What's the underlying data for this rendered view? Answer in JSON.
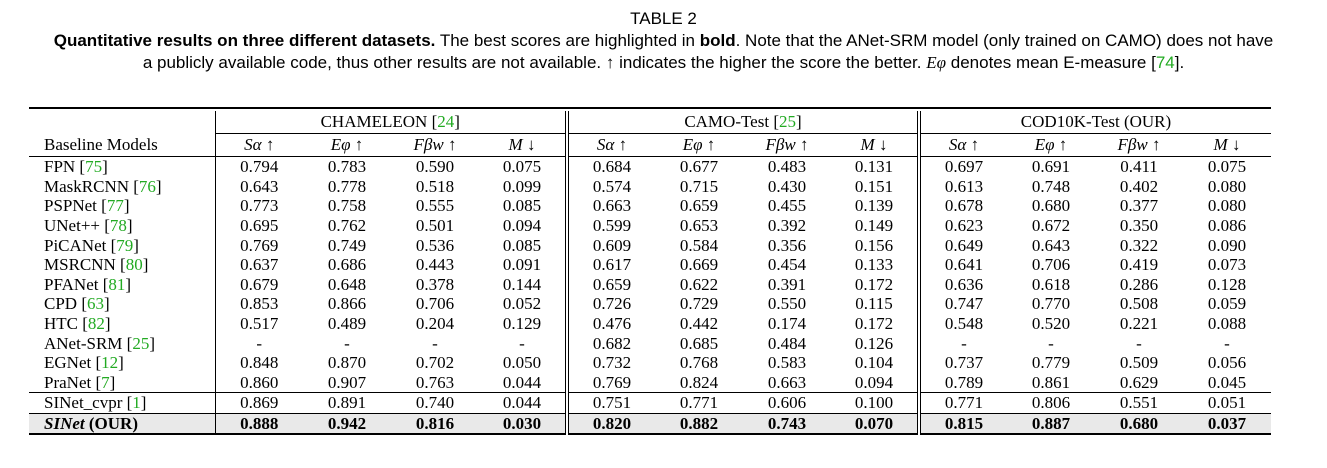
{
  "caption": {
    "table_label": "TABLE 2",
    "bold_lead": "Quantitative results on three different datasets.",
    "text_1": " The best scores are highlighted in ",
    "bold_word": "bold",
    "text_2": ". Note that the ANet-SRM model (only trained on CAMO) does not have a publicly available code, thus other results are not available. ↑ indicates the higher the score the better. ",
    "e_symbol": "Eφ",
    "text_3": " denotes mean E-measure [",
    "ref": "74",
    "text_4": "]."
  },
  "table": {
    "row_header": "Baseline Models",
    "datasets": [
      {
        "name": "CHAMELEON",
        "ref": "24"
      },
      {
        "name": "CAMO-Test",
        "ref": "25"
      },
      {
        "name": "COD10K-Test (OUR)",
        "ref": ""
      }
    ],
    "metrics": [
      "Sα ↑",
      "Eφ ↑",
      "Fβw ↑",
      "M ↓"
    ],
    "rows": [
      {
        "model": "FPN",
        "ref": "75",
        "values": [
          "0.794",
          "0.783",
          "0.590",
          "0.075",
          "0.684",
          "0.677",
          "0.483",
          "0.131",
          "0.697",
          "0.691",
          "0.411",
          "0.075"
        ]
      },
      {
        "model": "MaskRCNN",
        "ref": "76",
        "values": [
          "0.643",
          "0.778",
          "0.518",
          "0.099",
          "0.574",
          "0.715",
          "0.430",
          "0.151",
          "0.613",
          "0.748",
          "0.402",
          "0.080"
        ]
      },
      {
        "model": "PSPNet",
        "ref": "77",
        "values": [
          "0.773",
          "0.758",
          "0.555",
          "0.085",
          "0.663",
          "0.659",
          "0.455",
          "0.139",
          "0.678",
          "0.680",
          "0.377",
          "0.080"
        ]
      },
      {
        "model": "UNet++",
        "ref": "78",
        "values": [
          "0.695",
          "0.762",
          "0.501",
          "0.094",
          "0.599",
          "0.653",
          "0.392",
          "0.149",
          "0.623",
          "0.672",
          "0.350",
          "0.086"
        ]
      },
      {
        "model": "PiCANet",
        "ref": "79",
        "values": [
          "0.769",
          "0.749",
          "0.536",
          "0.085",
          "0.609",
          "0.584",
          "0.356",
          "0.156",
          "0.649",
          "0.643",
          "0.322",
          "0.090"
        ]
      },
      {
        "model": "MSRCNN",
        "ref": "80",
        "values": [
          "0.637",
          "0.686",
          "0.443",
          "0.091",
          "0.617",
          "0.669",
          "0.454",
          "0.133",
          "0.641",
          "0.706",
          "0.419",
          "0.073"
        ]
      },
      {
        "model": "PFANet",
        "ref": "81",
        "values": [
          "0.679",
          "0.648",
          "0.378",
          "0.144",
          "0.659",
          "0.622",
          "0.391",
          "0.172",
          "0.636",
          "0.618",
          "0.286",
          "0.128"
        ]
      },
      {
        "model": "CPD",
        "ref": "63",
        "values": [
          "0.853",
          "0.866",
          "0.706",
          "0.052",
          "0.726",
          "0.729",
          "0.550",
          "0.115",
          "0.747",
          "0.770",
          "0.508",
          "0.059"
        ]
      },
      {
        "model": "HTC",
        "ref": "82",
        "values": [
          "0.517",
          "0.489",
          "0.204",
          "0.129",
          "0.476",
          "0.442",
          "0.174",
          "0.172",
          "0.548",
          "0.520",
          "0.221",
          "0.088"
        ]
      },
      {
        "model": "ANet-SRM",
        "ref": "25",
        "values": [
          "-",
          "-",
          "-",
          "-",
          "0.682",
          "0.685",
          "0.484",
          "0.126",
          "-",
          "-",
          "-",
          "-"
        ]
      },
      {
        "model": "EGNet",
        "ref": "12",
        "values": [
          "0.848",
          "0.870",
          "0.702",
          "0.050",
          "0.732",
          "0.768",
          "0.583",
          "0.104",
          "0.737",
          "0.779",
          "0.509",
          "0.056"
        ]
      },
      {
        "model": "PraNet",
        "ref": "7",
        "values": [
          "0.860",
          "0.907",
          "0.763",
          "0.044",
          "0.769",
          "0.824",
          "0.663",
          "0.094",
          "0.789",
          "0.861",
          "0.629",
          "0.045"
        ]
      },
      {
        "model": "SINet_cvpr",
        "ref": "1",
        "values": [
          "0.869",
          "0.891",
          "0.740",
          "0.044",
          "0.751",
          "0.771",
          "0.606",
          "0.100",
          "0.771",
          "0.806",
          "0.551",
          "0.051"
        ]
      }
    ],
    "ours": {
      "model_italic": "SINet",
      "model_suffix": " (OUR)",
      "values": [
        "0.888",
        "0.942",
        "0.816",
        "0.030",
        "0.820",
        "0.882",
        "0.743",
        "0.070",
        "0.815",
        "0.887",
        "0.680",
        "0.037"
      ]
    }
  }
}
